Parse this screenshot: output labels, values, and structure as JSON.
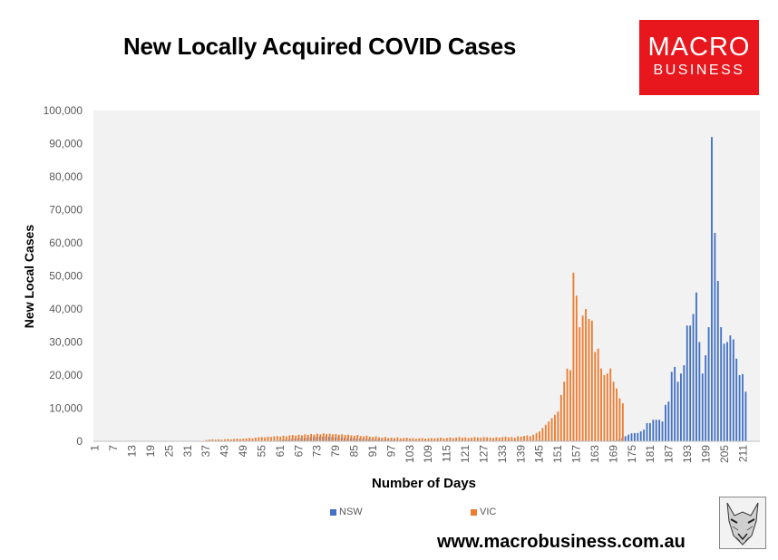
{
  "title": "New Locally Acquired COVID Cases",
  "logo": {
    "line1": "MACRO",
    "line2": "BUSINESS",
    "bg": "#e8171d"
  },
  "website": "www.macrobusiness.com.au",
  "wolf_icon": "wolf-head-icon",
  "chart_data": {
    "type": "bar",
    "title": "New Locally Acquired COVID Cases",
    "xlabel": "Number of Days",
    "ylabel": "New Local Cases",
    "ylim": [
      0,
      100000
    ],
    "yticks": [
      0,
      10000,
      20000,
      30000,
      40000,
      50000,
      60000,
      70000,
      80000,
      90000,
      100000
    ],
    "ytick_labels": [
      "0",
      "10,000",
      "20,000",
      "30,000",
      "40,000",
      "50,000",
      "60,000",
      "70,000",
      "80,000",
      "90,000",
      "100,000"
    ],
    "xticks": [
      1,
      7,
      13,
      19,
      25,
      31,
      37,
      43,
      49,
      55,
      61,
      67,
      73,
      79,
      85,
      91,
      97,
      103,
      109,
      115,
      121,
      127,
      133,
      139,
      145,
      151,
      157,
      163,
      169,
      175,
      181,
      187,
      193,
      199,
      205,
      211
    ],
    "x_range": [
      1,
      216
    ],
    "grid": false,
    "plot_background": "#f2f2f2",
    "legend": {
      "position": "bottom"
    },
    "series": [
      {
        "name": "NSW",
        "color": "#4472c4",
        "start_day": 1,
        "values": [
          0,
          0,
          0,
          0,
          0,
          0,
          0,
          0,
          0,
          0,
          0,
          0,
          0,
          0,
          0,
          0,
          0,
          0,
          0,
          0,
          0,
          0,
          0,
          0,
          0,
          0,
          0,
          0,
          0,
          0,
          0,
          0,
          0,
          0,
          0,
          0,
          0,
          0,
          0,
          0,
          0,
          0,
          0,
          0,
          0,
          0,
          0,
          0,
          0,
          0,
          0,
          0,
          0,
          0,
          0,
          0,
          0,
          0,
          0,
          0,
          300,
          400,
          500,
          600,
          700,
          800,
          900,
          1000,
          1000,
          1100,
          1200,
          1300,
          1400,
          1400,
          1500,
          1500,
          1400,
          1300,
          1200,
          1200,
          1100,
          1000,
          1000,
          900,
          900,
          800,
          800,
          700,
          700,
          600,
          600,
          600,
          500,
          500,
          500,
          400,
          400,
          400,
          300,
          300,
          300,
          300,
          200,
          200,
          200,
          200,
          200,
          200,
          200,
          200,
          200,
          200,
          200,
          200,
          200,
          200,
          200,
          200,
          200,
          200,
          200,
          200,
          200,
          200,
          200,
          200,
          200,
          200,
          200,
          200,
          200,
          200,
          200,
          200,
          200,
          200,
          200,
          200,
          200,
          200,
          200,
          200,
          200,
          200,
          200,
          200,
          200,
          200,
          200,
          200,
          200,
          200,
          200,
          200,
          200,
          200,
          200,
          200,
          200,
          200,
          200,
          200,
          200,
          200,
          200,
          200,
          200,
          200,
          200,
          200,
          500,
          1000,
          1500,
          2000,
          2400,
          2500,
          2500,
          3000,
          3500,
          5500,
          5500,
          6500,
          6500,
          6500,
          6000,
          11000,
          12000,
          21000,
          22500,
          18000,
          20500,
          23000,
          35000,
          35000,
          38500,
          45000,
          30000,
          20500,
          26000,
          34500,
          92000,
          63000,
          48500,
          34500,
          29500,
          30000,
          32000,
          30800,
          25000,
          20000,
          20300,
          15000
        ]
      },
      {
        "name": "VIC",
        "color": "#ed7d31",
        "start_day": 1,
        "values": [
          0,
          0,
          0,
          0,
          0,
          0,
          0,
          0,
          0,
          0,
          0,
          0,
          0,
          0,
          0,
          0,
          0,
          0,
          0,
          0,
          0,
          0,
          0,
          0,
          0,
          0,
          0,
          0,
          0,
          0,
          0,
          0,
          0,
          0,
          0,
          0,
          400,
          500,
          600,
          500,
          600,
          500,
          600,
          700,
          600,
          700,
          800,
          700,
          800,
          900,
          1000,
          900,
          1100,
          1200,
          1300,
          1200,
          1400,
          1300,
          1500,
          1600,
          1400,
          1700,
          1500,
          1800,
          1900,
          1700,
          2000,
          1800,
          2100,
          1900,
          2200,
          2000,
          2300,
          2100,
          2400,
          2200,
          2300,
          2100,
          2200,
          2000,
          2100,
          1900,
          2000,
          1800,
          1700,
          1900,
          1600,
          1500,
          1700,
          1400,
          1300,
          1500,
          1200,
          1100,
          1300,
          1000,
          1100,
          1000,
          1200,
          900,
          1000,
          1100,
          900,
          1000,
          800,
          900,
          1000,
          800,
          900,
          1000,
          900,
          1000,
          1100,
          900,
          1000,
          1200,
          1000,
          1100,
          1300,
          1100,
          1200,
          1000,
          1100,
          1300,
          1200,
          1100,
          1300,
          1200,
          1100,
          1000,
          1200,
          1100,
          1300,
          1400,
          1200,
          1300,
          1100,
          1500,
          1400,
          1600,
          1800,
          1500,
          2000,
          2500,
          3000,
          4000,
          5000,
          6000,
          7000,
          8000,
          9000,
          14000,
          18000,
          22000,
          21500,
          51000,
          44000,
          34500,
          38000,
          40000,
          37000,
          36500,
          27000,
          28000,
          22000,
          20000,
          20500,
          22000,
          18000,
          16000,
          13000,
          11500,
          0,
          0,
          0,
          0,
          0,
          0,
          0,
          0,
          0,
          0,
          0,
          0,
          0,
          0,
          0,
          0,
          0,
          0,
          0,
          0,
          0,
          0,
          0,
          0,
          0,
          0,
          0,
          0,
          0,
          0,
          0,
          0,
          0,
          0,
          0,
          0,
          0,
          0,
          0,
          0,
          0,
          0,
          0,
          0,
          0
        ]
      }
    ]
  }
}
